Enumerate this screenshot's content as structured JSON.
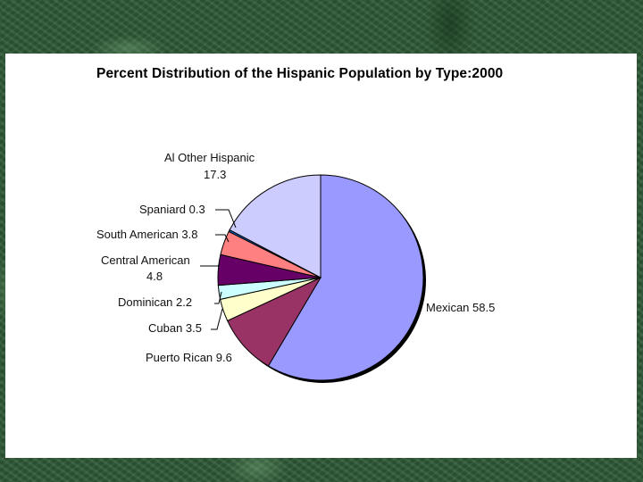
{
  "title": "Percent Distribution of the Hispanic Population by Type:2000",
  "labels": {
    "other_name": "Al Other Hispanic",
    "other_value": "17.3",
    "spaniard": "Spaniard 0.3",
    "south_american": "South American 3.8",
    "central_name": "Central American",
    "central_value": "4.8",
    "dominican": "Dominican 2.2",
    "cuban": "Cuban 3.5",
    "puerto_rican": "Puerto Rican 9.6",
    "mexican": "Mexican 58.5"
  },
  "chart_data": {
    "type": "pie",
    "title": "Percent Distribution of the Hispanic Population by Type:2000",
    "categories": [
      "Mexican",
      "Puerto Rican",
      "Cuban",
      "Dominican",
      "Central American",
      "South American",
      "Spaniard",
      "Al Other Hispanic"
    ],
    "values": [
      58.5,
      9.6,
      3.5,
      2.2,
      4.8,
      3.8,
      0.3,
      17.3
    ],
    "colors": [
      "#9999ff",
      "#993366",
      "#ffffcc",
      "#ccffff",
      "#660066",
      "#ff8080",
      "#0066cc",
      "#ccccff"
    ],
    "start_angle": "12 o'clock, clockwise",
    "legend": "none (data labels beside slices)"
  }
}
